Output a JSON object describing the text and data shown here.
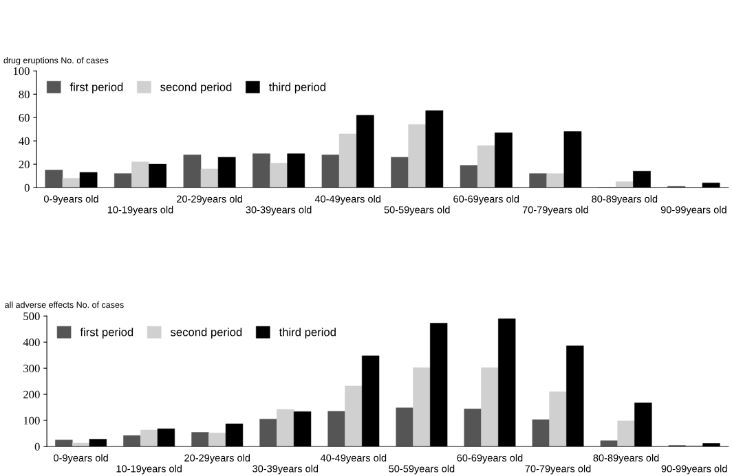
{
  "chart_data": [
    {
      "type": "bar",
      "ylabel": "drug eruptions No. of cases",
      "categories": [
        "0-9years old",
        "10-19years old",
        "20-29years old",
        "30-39years old",
        "40-49years old",
        "50-59years old",
        "60-69years old",
        "70-79years old",
        "80-89years old",
        "90-99years old"
      ],
      "series": [
        {
          "name": "first period",
          "color": "#555555",
          "values": [
            15,
            12,
            28,
            29,
            28,
            26,
            19,
            12,
            0,
            1
          ]
        },
        {
          "name": "second period",
          "color": "#d0d0d0",
          "values": [
            8,
            22,
            16,
            21,
            46,
            54,
            36,
            12,
            5,
            0
          ]
        },
        {
          "name": "third period",
          "color": "#000000",
          "values": [
            13,
            20,
            26,
            29,
            62,
            66,
            47,
            48,
            14,
            4
          ]
        }
      ],
      "ylim": [
        0,
        100
      ],
      "yticks": [
        0,
        20,
        40,
        60,
        80,
        100
      ],
      "grid": false,
      "legend": "top left"
    },
    {
      "type": "bar",
      "ylabel": "all adverse effects No. of cases",
      "categories": [
        "0-9years old",
        "10-19years old",
        "20-29years old",
        "30-39years old",
        "40-49years old",
        "50-59years old",
        "60-69years old",
        "70-79years old",
        "80-89years old",
        "90-99years old"
      ],
      "series": [
        {
          "name": "first period",
          "color": "#555555",
          "values": [
            25,
            42,
            54,
            105,
            135,
            148,
            144,
            103,
            22,
            4
          ]
        },
        {
          "name": "second period",
          "color": "#d0d0d0",
          "values": [
            13,
            63,
            52,
            142,
            232,
            302,
            302,
            210,
            98,
            4
          ]
        },
        {
          "name": "third period",
          "color": "#000000",
          "values": [
            28,
            68,
            87,
            134,
            348,
            473,
            490,
            386,
            167,
            12
          ]
        }
      ],
      "ylim": [
        0,
        500
      ],
      "yticks": [
        0,
        100,
        200,
        300,
        400,
        500
      ],
      "grid": false,
      "legend": "top left"
    }
  ]
}
